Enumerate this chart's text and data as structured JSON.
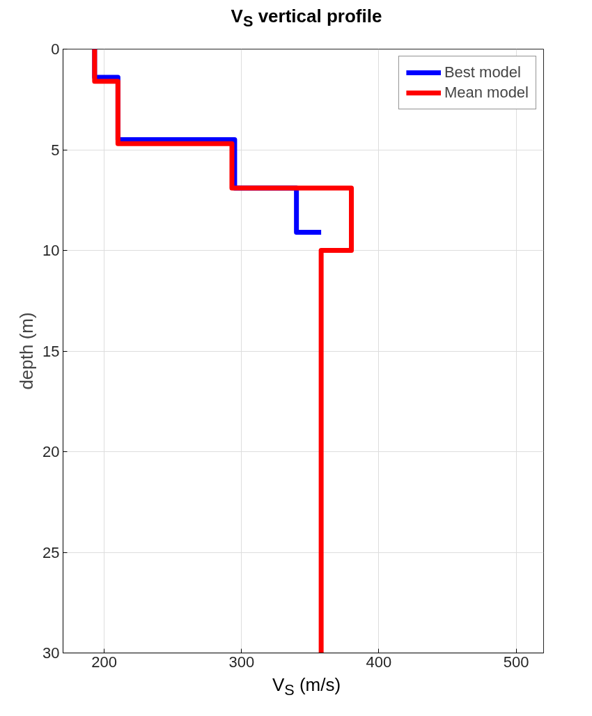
{
  "chart_data": {
    "type": "line",
    "title": "V$_{S}$ vertical profile",
    "xlabel": "V$_{S}$ (m/s)",
    "ylabel": "depth (m)",
    "xlim": [
      170,
      520
    ],
    "xticks": [
      200,
      300,
      400,
      500
    ],
    "ylim": [
      30,
      0
    ],
    "yticks": [
      0,
      5,
      10,
      15,
      20,
      25,
      30
    ],
    "grid": true,
    "legend": "top right",
    "line_style": "solid",
    "series": [
      {
        "name": "Best model",
        "color": "#0000ff",
        "x": [
          193,
          193,
          210,
          210,
          295,
          295,
          340,
          340,
          358
        ],
        "values": [
          0,
          1.4,
          1.4,
          4.5,
          4.5,
          6.9,
          6.9,
          9.1,
          9.1
        ]
      },
      {
        "name": "Mean model",
        "color": "#ff0000",
        "x": [
          193,
          193,
          210,
          210,
          293,
          293,
          380,
          380,
          358,
          358
        ],
        "values": [
          0,
          1.6,
          1.6,
          4.7,
          4.7,
          6.9,
          6.9,
          10,
          10,
          30
        ]
      }
    ]
  }
}
